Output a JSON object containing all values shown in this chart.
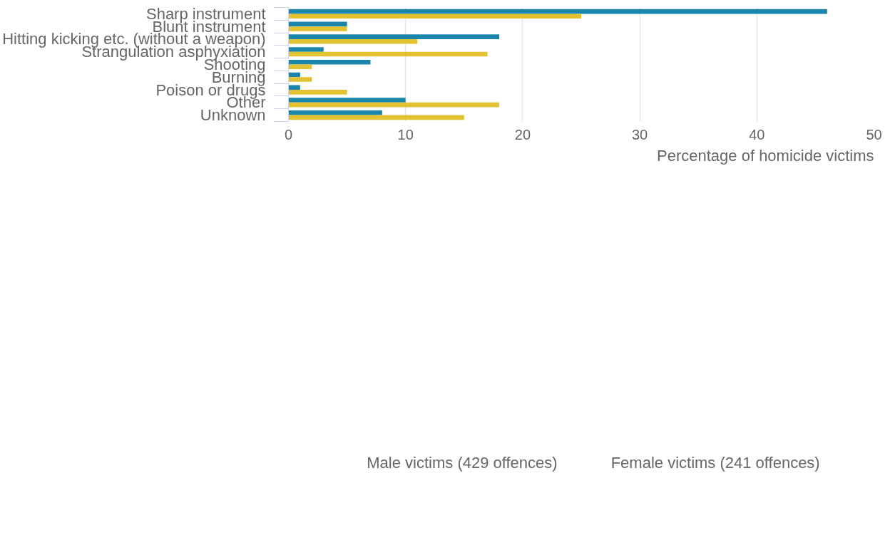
{
  "chart_data": {
    "type": "bar",
    "orientation": "horizontal",
    "xlabel": "Percentage of homicide victims",
    "categories": [
      "Sharp instrument",
      "Blunt instrument",
      "Hitting kicking etc. (without a weapon)",
      "Strangulation asphyxiation",
      "Shooting",
      "Burning",
      "Poison or drugs",
      "Other",
      "Unknown"
    ],
    "series": [
      {
        "name": "Male victims (429 offences)",
        "color": "#1a86ac",
        "values": [
          46,
          5,
          18,
          3,
          7,
          1,
          1,
          10,
          8
        ]
      },
      {
        "name": "Female victims (241 offences)",
        "color": "#e3c232",
        "values": [
          25,
          5,
          11,
          17,
          2,
          2,
          5,
          18,
          15
        ]
      }
    ],
    "xlim": [
      0,
      50
    ],
    "xticks": [
      0,
      10,
      20,
      30,
      40,
      50
    ],
    "grid": "x",
    "legend": "bottom",
    "marker": "circle"
  }
}
